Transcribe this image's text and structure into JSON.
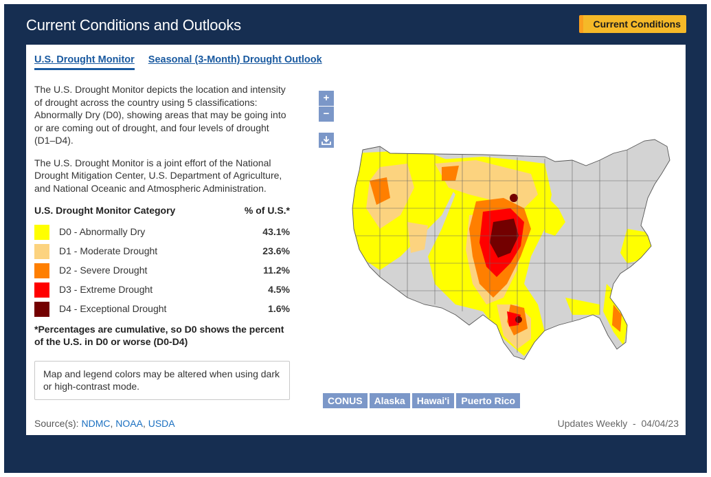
{
  "header": {
    "title": "Current Conditions and Outlooks",
    "current_conditions_button": "Current Conditions"
  },
  "tabs": [
    {
      "label": "U.S. Drought Monitor",
      "active": true
    },
    {
      "label": "Seasonal (3-Month) Drought Outlook",
      "active": false
    }
  ],
  "description": {
    "p1": "The U.S. Drought Monitor depicts the location and intensity of drought across the country using 5 classifications: Abnormally Dry (D0), showing areas that may be going into or are coming out of drought, and four levels of drought (D1–D4).",
    "p2": "The U.S. Drought Monitor is a joint effort of the National Drought Mitigation Center, U.S. Department of Agriculture, and National Oceanic and Atmospheric Administration."
  },
  "legend": {
    "category_header": "U.S. Drought Monitor Category",
    "percent_header": "% of U.S.*",
    "items": [
      {
        "label": "D0 - Abnormally Dry",
        "percent": "43.1%",
        "color": "#ffff00"
      },
      {
        "label": "D1 - Moderate Drought",
        "percent": "23.6%",
        "color": "#fcd37f"
      },
      {
        "label": "D2 - Severe Drought",
        "percent": "11.2%",
        "color": "#ffaa00"
      },
      {
        "label": "D3 - Extreme Drought",
        "percent": "4.5%",
        "color": "#e60000"
      },
      {
        "label": "D4 - Exceptional Drought",
        "percent": "1.6%",
        "color": "#730000"
      }
    ],
    "note": "*Percentages are cumulative, so D0 shows the percent of the U.S. in D0 or worse (D0-D4)"
  },
  "alert": "Map and legend colors may be altered when using dark or high-contrast mode.",
  "map_controls": {
    "zoom_in": "+",
    "zoom_out": "−",
    "download_icon": "download-icon"
  },
  "regions": [
    "CONUS",
    "Alaska",
    "Hawai'i",
    "Puerto Rico"
  ],
  "footer": {
    "source_prefix": "Source(s): ",
    "sources": [
      "NDMC",
      "NOAA",
      "USDA"
    ],
    "updates": "Updates Weekly  -  04/04/23"
  },
  "colors": {
    "navy": "#162e51",
    "accent": "#f5b928",
    "link": "#1a5aa0",
    "no_drought": "#d3d3d3"
  }
}
